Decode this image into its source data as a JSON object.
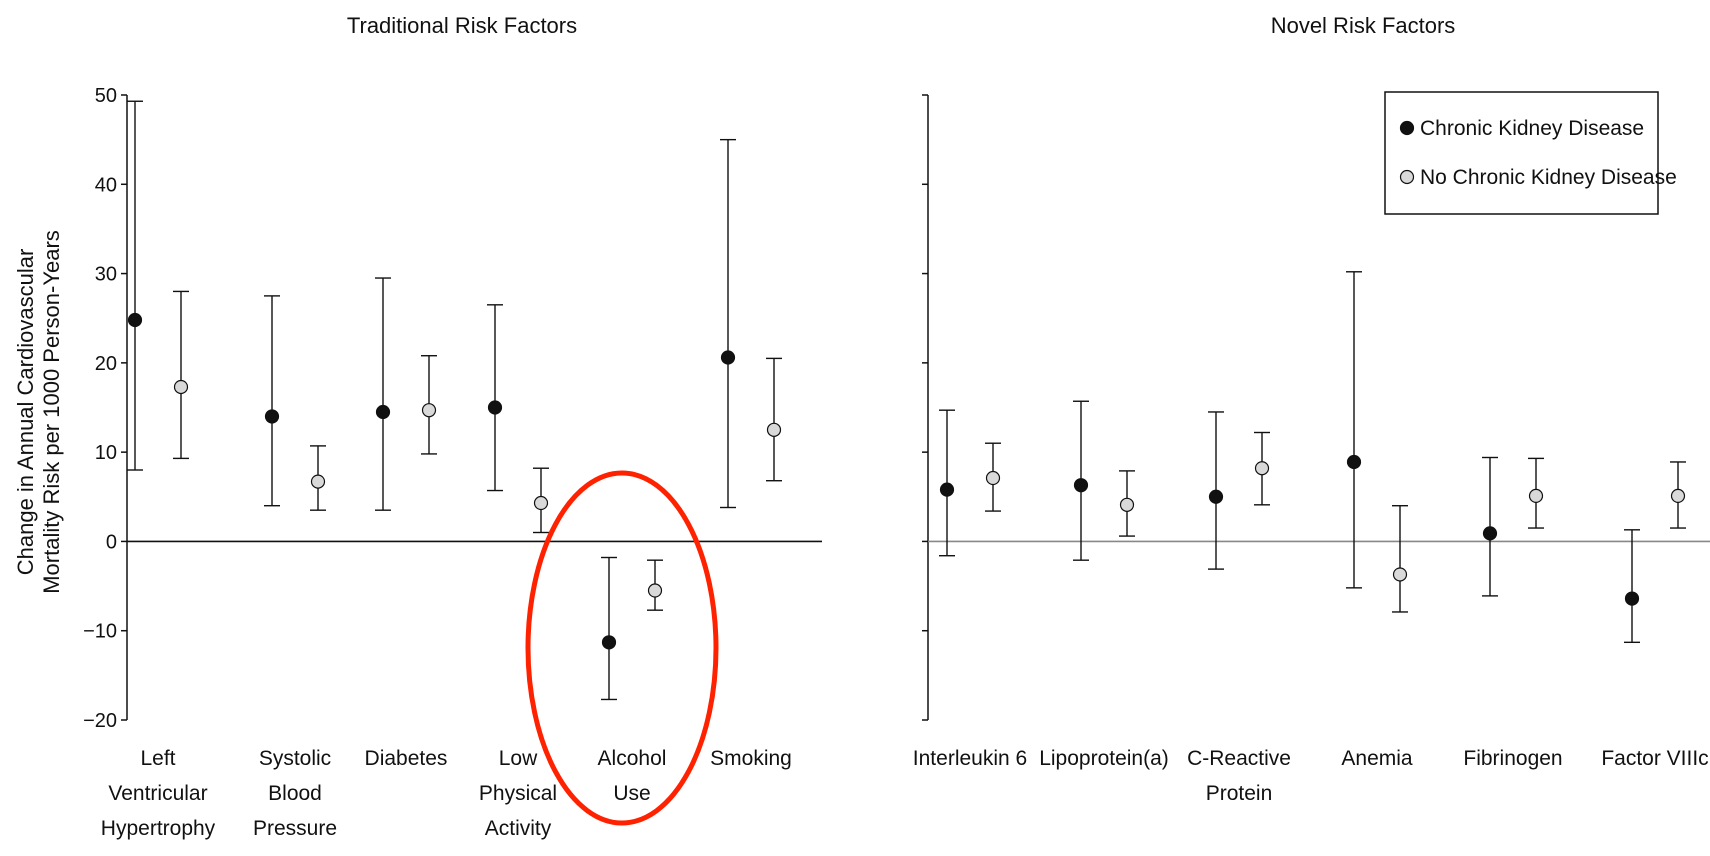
{
  "chart_data": [
    {
      "type": "scatter",
      "subtype": "point-with-error-bars",
      "title": "Traditional Risk Factors",
      "ylabel_lines": [
        "Change in Annual Cardiovascular",
        "Mortality Risk per 1000 Person-Years"
      ],
      "ylim": [
        -20,
        50
      ],
      "yticks": [
        -20,
        -10,
        0,
        10,
        20,
        30,
        40,
        50
      ],
      "reference_line": 0,
      "categories": [
        [
          "Left",
          "Ventricular",
          "Hypertrophy"
        ],
        [
          "Systolic",
          "Blood",
          "Pressure"
        ],
        [
          "Diabetes"
        ],
        [
          "Low",
          "Physical",
          "Activity"
        ],
        [
          "Alcohol",
          "Use"
        ],
        [
          "Smoking"
        ]
      ],
      "series": [
        {
          "name": "Chronic Kidney Disease",
          "marker": "filled",
          "values": [
            24.8,
            14.0,
            14.5,
            15.0,
            -11.3,
            20.6
          ],
          "lower": [
            8.0,
            4.0,
            3.5,
            5.7,
            -17.7,
            3.8
          ],
          "upper": [
            49.3,
            27.5,
            29.5,
            26.5,
            -1.8,
            45.0
          ]
        },
        {
          "name": "No Chronic Kidney Disease",
          "marker": "open-gray",
          "values": [
            17.3,
            6.7,
            14.7,
            4.3,
            -5.5,
            12.5
          ],
          "lower": [
            9.3,
            3.5,
            9.8,
            1.0,
            -7.7,
            6.8
          ],
          "upper": [
            28.0,
            10.7,
            20.8,
            8.2,
            -2.1,
            20.5
          ]
        }
      ],
      "annotation": {
        "type": "highlight-ellipse",
        "category": "Alcohol Use",
        "color": "#ff2200"
      }
    },
    {
      "type": "scatter",
      "subtype": "point-with-error-bars",
      "title": "Novel Risk Factors",
      "ylim": [
        -20,
        50
      ],
      "reference_line": 0,
      "categories": [
        [
          "Interleukin 6"
        ],
        [
          "Lipoprotein(a)"
        ],
        [
          "C-Reactive",
          "Protein"
        ],
        [
          "Anemia"
        ],
        [
          "Fibrinogen"
        ],
        [
          "Factor VIIIc"
        ]
      ],
      "series": [
        {
          "name": "Chronic Kidney Disease",
          "marker": "filled",
          "values": [
            5.8,
            6.3,
            5.0,
            8.9,
            0.9,
            -6.4
          ],
          "lower": [
            -1.6,
            -2.1,
            -3.1,
            -5.2,
            -6.1,
            -11.3
          ],
          "upper": [
            14.7,
            15.7,
            14.5,
            30.2,
            9.4,
            1.3
          ]
        },
        {
          "name": "No Chronic Kidney Disease",
          "marker": "open-gray",
          "values": [
            7.1,
            4.1,
            8.2,
            -3.7,
            5.1,
            5.1
          ],
          "lower": [
            3.4,
            0.6,
            4.1,
            -7.9,
            1.5,
            1.5
          ],
          "upper": [
            11.0,
            7.9,
            12.2,
            4.0,
            9.3,
            8.9
          ]
        }
      ],
      "legend": {
        "placement": "top-right",
        "entries": [
          {
            "label": "Chronic Kidney Disease",
            "marker": "filled"
          },
          {
            "label": "No Chronic Kidney Disease",
            "marker": "open-gray"
          }
        ]
      }
    }
  ],
  "colors": {
    "filled_marker": "#111111",
    "open_marker_fill": "#d9d9d9",
    "axis": "#111111",
    "right_zero_line": "#888888",
    "highlight": "#ff2200"
  }
}
